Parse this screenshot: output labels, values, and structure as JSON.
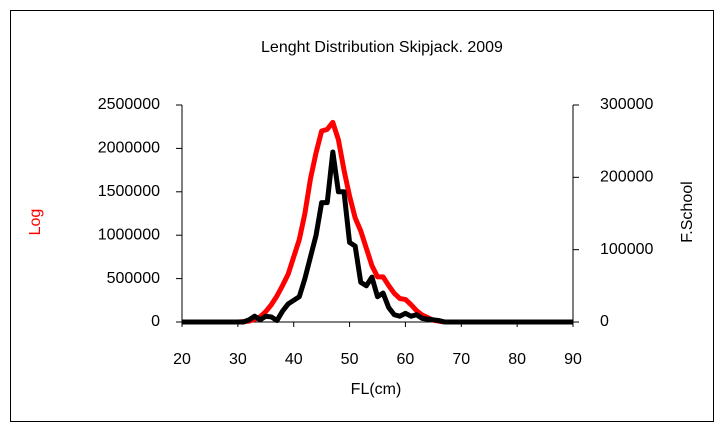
{
  "chart_data": {
    "type": "line",
    "title": "Lenght Distribution Skipjack. 2009",
    "x_label": "FL(cm)",
    "y_label": "Log",
    "y2_label": "F.School",
    "x": [
      20,
      21,
      22,
      23,
      24,
      25,
      26,
      27,
      28,
      29,
      30,
      31,
      32,
      33,
      34,
      35,
      36,
      37,
      38,
      39,
      40,
      41,
      42,
      43,
      44,
      45,
      46,
      47,
      48,
      49,
      50,
      51,
      52,
      53,
      54,
      55,
      56,
      57,
      58,
      59,
      60,
      61,
      62,
      63,
      64,
      65,
      66,
      67,
      68,
      69,
      70,
      71,
      72,
      73,
      74,
      75,
      76,
      77,
      78,
      79,
      80,
      81,
      82,
      83,
      84,
      85,
      86,
      87,
      88,
      89,
      90
    ],
    "series": [
      {
        "name": "Log",
        "color": "#ff0000",
        "axis": "y",
        "values": [
          0,
          0,
          0,
          0,
          0,
          0,
          0,
          0,
          0,
          0,
          0,
          5000,
          10000,
          30000,
          60000,
          120000,
          200000,
          300000,
          420000,
          550000,
          750000,
          950000,
          1250000,
          1650000,
          1950000,
          2200000,
          2220000,
          2300000,
          2100000,
          1750000,
          1450000,
          1200000,
          1050000,
          850000,
          650000,
          520000,
          520000,
          420000,
          330000,
          270000,
          260000,
          200000,
          130000,
          80000,
          50000,
          20000,
          10000,
          0,
          0,
          0,
          0,
          0,
          0,
          0,
          0,
          0,
          0,
          0,
          0,
          0,
          0,
          0,
          0,
          0,
          0,
          0,
          0,
          0,
          0,
          0,
          0
        ]
      },
      {
        "name": "F.School",
        "color": "#000000",
        "axis": "y2",
        "values": [
          0,
          0,
          0,
          0,
          0,
          0,
          0,
          0,
          0,
          0,
          0,
          0,
          3000,
          8000,
          3000,
          8000,
          7000,
          2000,
          15000,
          25000,
          30000,
          35000,
          60000,
          90000,
          120000,
          165000,
          165000,
          235000,
          180000,
          180000,
          110000,
          105000,
          55000,
          50000,
          62000,
          35000,
          40000,
          20000,
          10000,
          8000,
          12000,
          8000,
          10000,
          5000,
          4000,
          3000,
          2000,
          0,
          0,
          0,
          0,
          0,
          0,
          0,
          0,
          0,
          0,
          0,
          0,
          0,
          0,
          0,
          0,
          0,
          0,
          0,
          0,
          0,
          0,
          0,
          0
        ]
      }
    ],
    "xlim": [
      20,
      90
    ],
    "xticks": [
      20,
      30,
      40,
      50,
      60,
      70,
      80,
      90
    ],
    "ylim": [
      0,
      2500000
    ],
    "yticks": [
      0,
      500000,
      1000000,
      1500000,
      2000000,
      2500000
    ],
    "y2lim": [
      0,
      300000
    ],
    "y2ticks": [
      0,
      100000,
      200000,
      300000
    ]
  }
}
